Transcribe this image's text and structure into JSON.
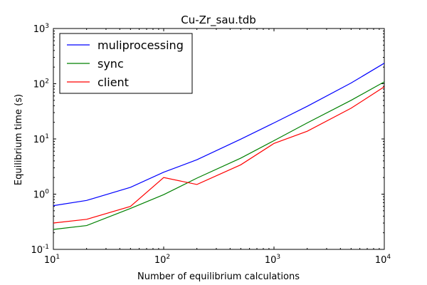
{
  "chart_data": {
    "type": "line",
    "title": "Cu-Zr_sau.tdb",
    "xlabel": "Number of equilibrium calculations",
    "ylabel": "Equilibrium time (s)",
    "x_scale": "log",
    "y_scale": "log",
    "xlim": [
      10,
      10000
    ],
    "ylim": [
      0.1,
      1000
    ],
    "x_ticks": [
      10,
      100,
      1000,
      10000
    ],
    "y_ticks": [
      0.1,
      1,
      10,
      100,
      1000
    ],
    "x_tick_labels": [
      {
        "base": "10",
        "exp": "1"
      },
      {
        "base": "10",
        "exp": "2"
      },
      {
        "base": "10",
        "exp": "3"
      },
      {
        "base": "10",
        "exp": "4"
      }
    ],
    "y_tick_labels": [
      {
        "base": "10",
        "exp": "-1"
      },
      {
        "base": "10",
        "exp": "0"
      },
      {
        "base": "10",
        "exp": "1"
      },
      {
        "base": "10",
        "exp": "2"
      },
      {
        "base": "10",
        "exp": "3"
      }
    ],
    "grid": false,
    "legend_position": "top-left",
    "x": [
      10,
      20,
      50,
      100,
      200,
      500,
      1000,
      2000,
      5000,
      10000
    ],
    "series": [
      {
        "name": "muliprocessing",
        "color": "#0000ff",
        "values": [
          0.62,
          0.77,
          1.33,
          2.5,
          4.2,
          9.9,
          19.5,
          39,
          103,
          235
        ]
      },
      {
        "name": "sync",
        "color": "#008000",
        "values": [
          0.23,
          0.27,
          0.55,
          0.98,
          1.95,
          4.5,
          9.3,
          19.5,
          50,
          108
        ]
      },
      {
        "name": "client",
        "color": "#ff0000",
        "values": [
          0.3,
          0.35,
          0.6,
          2.0,
          1.5,
          3.4,
          8.3,
          13.8,
          36,
          88
        ]
      }
    ]
  }
}
